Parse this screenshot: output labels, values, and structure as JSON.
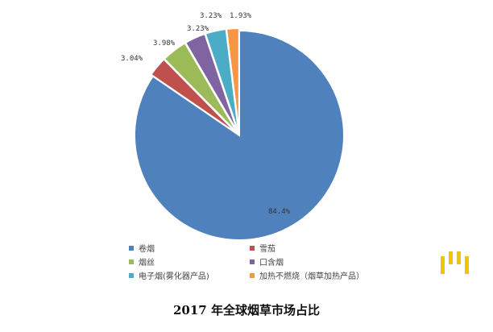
{
  "chart_data": {
    "type": "pie",
    "title": "2017 年全球烟草市场占比",
    "start": "top",
    "direction": "clockwise",
    "legend_position": "bottom",
    "slices": [
      {
        "name": "卷烟",
        "value": 84.4,
        "label": "84.4%",
        "color": "#4f81bd"
      },
      {
        "name": "雪茄",
        "value": 3.04,
        "label": "3.04%",
        "color": "#c0504d"
      },
      {
        "name": "烟丝",
        "value": 3.98,
        "label": "3.98%",
        "color": "#9bbb59"
      },
      {
        "name": "口含烟",
        "value": 3.23,
        "label": "3.23%",
        "color": "#8064a2"
      },
      {
        "name": "电子烟(雾化器产品)",
        "value": 3.23,
        "label": "3.23%",
        "color": "#4bacc6"
      },
      {
        "name": "加热不燃烧（烟草加热产品）",
        "value": 1.93,
        "label": "1.93%",
        "color": "#f79646"
      }
    ]
  }
}
